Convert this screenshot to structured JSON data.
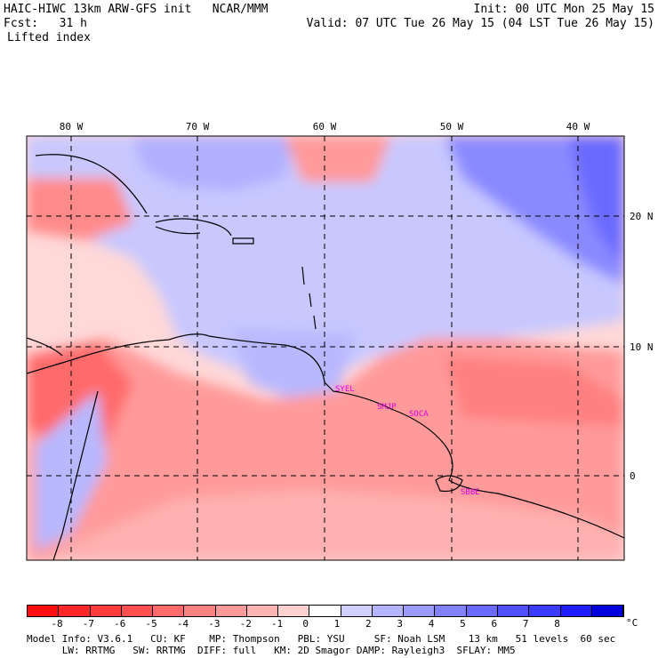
{
  "header": {
    "model_line": "HAIC-HIWC 13km ARW-GFS init   NCAR/MMM",
    "init_line": "Init: 00 UTC Mon 25 May 15",
    "fcst_line": "Fcst:   31 h",
    "valid_line": "Valid: 07 UTC Tue 26 May 15 (04 LST Tue 26 May 15)",
    "field": "Lifted index"
  },
  "map": {
    "lon_labels": [
      "80 W",
      "70 W",
      "60 W",
      "50 W",
      "40 W"
    ],
    "lat_labels": [
      "20 N",
      "10 N",
      "0"
    ],
    "stations": [
      "SYEL",
      "SMJP",
      "SOCA",
      "SBBE"
    ]
  },
  "colorbar": {
    "ticks": [
      "-8",
      "-7",
      "-6",
      "-5",
      "-4",
      "-3",
      "-2",
      "-1",
      "0",
      "1",
      "2",
      "3",
      "4",
      "5",
      "6",
      "7",
      "8"
    ],
    "unit": "°C",
    "colors": [
      "#ff1010",
      "#ff2828",
      "#ff3c3c",
      "#ff5050",
      "#ff6a6a",
      "#ff8282",
      "#ff9a9a",
      "#ffb4b4",
      "#ffd0d0",
      "#ffffff",
      "#d0d0ff",
      "#b4b4ff",
      "#9a9aff",
      "#8282ff",
      "#6a6aff",
      "#5050ff",
      "#3c3cff",
      "#1e1eff",
      "#0000dd"
    ]
  },
  "footer": {
    "line1": "Model Info: V3.6.1   CU: KF    MP: Thompson   PBL: YSU     SF: Noah LSM    13 km   51 levels  60 sec",
    "line2": "      LW: RRTMG   SW: RRTMG  DIFF: full   KM: 2D Smagor DAMP: Rayleigh3  SFLAY: MM5"
  }
}
